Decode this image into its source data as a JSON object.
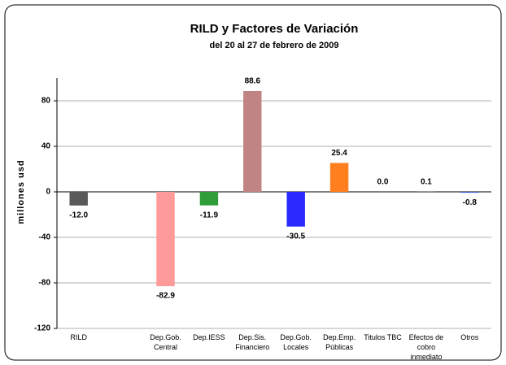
{
  "chart_data": {
    "type": "bar",
    "title": "RILD y Factores de Variación",
    "subtitle": "del 20 al 27 de febrero de 2009",
    "y_label": "millones usd",
    "categories": [
      "RILD",
      null,
      "Dep.Gob. Central",
      "Dep.IESS",
      "Dep.Sis. Financiero",
      "Dep.Gob. Locales",
      "Dep.Emp. Públicas",
      "Titulos TBC",
      "Efectos de cobro inmediato",
      "Otros"
    ],
    "values": [
      -12.0,
      null,
      -82.9,
      -11.9,
      88.6,
      -30.5,
      25.4,
      0.0,
      0.1,
      -0.8
    ],
    "value_labels": [
      "-12.0",
      null,
      "-82.9",
      "-11.9",
      "88.6",
      "-30.5",
      "25.4",
      "0.0",
      "0.1",
      "-0.8"
    ],
    "colors": [
      "#5a5a5a",
      null,
      "#ff9a9a",
      "#2f9e3a",
      "#c08484",
      "#2a2aff",
      "#ff7f1e",
      "#a0a0a0",
      "#a0a0a0",
      "#3f5fd0"
    ],
    "ylim": [
      -120,
      100
    ],
    "yticks": [
      -120,
      -80,
      -40,
      0,
      40,
      80
    ],
    "grid": true
  }
}
